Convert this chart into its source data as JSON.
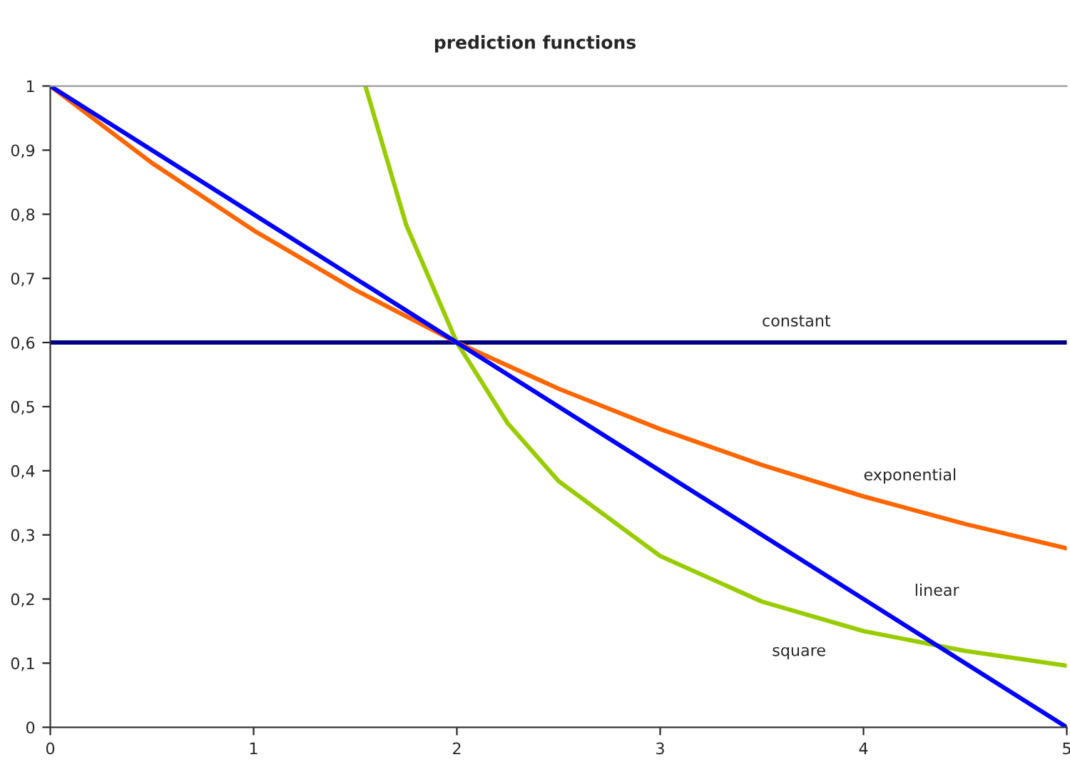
{
  "chart_data": {
    "type": "line",
    "title": "prediction functions",
    "series": [
      {
        "name": "constant",
        "color": "#000080",
        "x": [
          0,
          5
        ],
        "values": [
          0.6,
          0.6
        ]
      },
      {
        "name": "exponential",
        "color": "#ff6600",
        "x": [
          0,
          0.5,
          1,
          1.5,
          2,
          2.5,
          3,
          3.5,
          4,
          4.5,
          5
        ],
        "values": [
          1,
          0.88,
          0.775,
          0.682,
          0.6,
          0.528,
          0.465,
          0.409,
          0.36,
          0.317,
          0.279
        ]
      },
      {
        "name": "square",
        "color": "#99cc00",
        "x": [
          1.55,
          1.75,
          2,
          2.25,
          2.5,
          3,
          3.5,
          4,
          4.5,
          5
        ],
        "values": [
          1,
          0.784,
          0.6,
          0.474,
          0.384,
          0.267,
          0.196,
          0.15,
          0.119,
          0.096
        ]
      },
      {
        "name": "linear",
        "color": "#0000ff",
        "x": [
          0,
          1,
          2,
          3,
          4,
          5
        ],
        "values": [
          1,
          0.8,
          0.6,
          0.4,
          0.2,
          0
        ]
      }
    ],
    "xlim": [
      0,
      5
    ],
    "ylim": [
      0,
      1
    ],
    "xticks": [
      0,
      1,
      2,
      3,
      4,
      5
    ],
    "yticks": [
      {
        "value": 0,
        "label": "0"
      },
      {
        "value": 0.1,
        "label": "0,1"
      },
      {
        "value": 0.2,
        "label": "0,2"
      },
      {
        "value": 0.3,
        "label": "0,3"
      },
      {
        "value": 0.4,
        "label": "0,4"
      },
      {
        "value": 0.5,
        "label": "0,5"
      },
      {
        "value": 0.6,
        "label": "0,6"
      },
      {
        "value": 0.7,
        "label": "0,7"
      },
      {
        "value": 0.8,
        "label": "0,8"
      },
      {
        "value": 0.9,
        "label": "0,9"
      },
      {
        "value": 1,
        "label": "1"
      }
    ],
    "grid": false,
    "marker": "none",
    "line_style": "solid",
    "legend": false
  }
}
